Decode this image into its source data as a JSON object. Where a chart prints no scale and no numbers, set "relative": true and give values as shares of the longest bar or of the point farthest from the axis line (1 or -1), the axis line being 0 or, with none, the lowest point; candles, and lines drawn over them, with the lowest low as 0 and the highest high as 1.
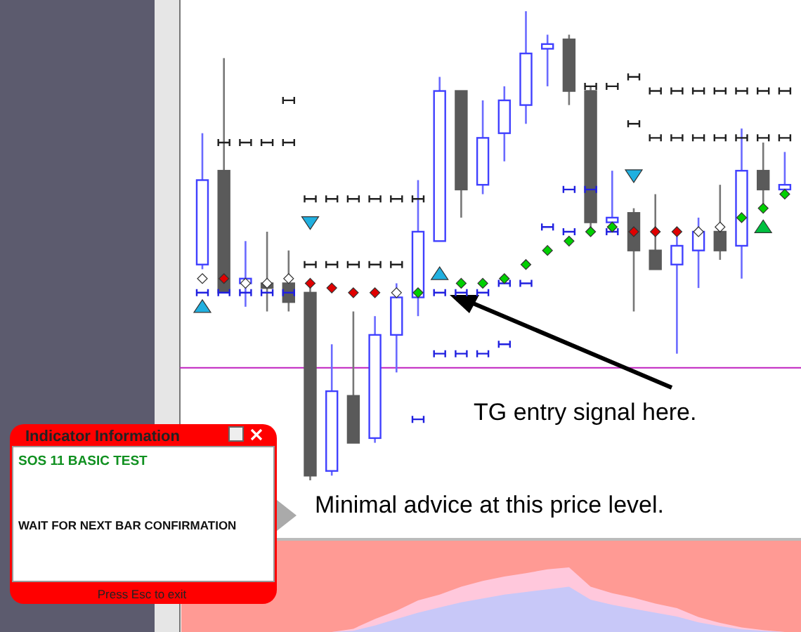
{
  "chart_data": [
    {
      "type": "candlestick",
      "relative": true,
      "categories": [
        null,
        null,
        null,
        null,
        null,
        null,
        null,
        null,
        null,
        null,
        null,
        null,
        null,
        null,
        null,
        null,
        null,
        null,
        null,
        null,
        null,
        null,
        null,
        null,
        null,
        null,
        null,
        null
      ],
      "ohlc": [
        [
          0.46,
          0.74,
          0.45,
          0.64
        ],
        [
          0.66,
          0.9,
          0.4,
          0.4
        ],
        [
          0.42,
          0.51,
          0.37,
          0.43
        ],
        [
          0.42,
          0.53,
          0.36,
          0.41
        ],
        [
          0.42,
          0.49,
          0.36,
          0.38
        ],
        [
          0.4,
          0.42,
          0,
          0.01
        ],
        [
          0.02,
          0.29,
          0.01,
          0.19
        ],
        [
          0.18,
          0.36,
          0.08,
          0.08
        ],
        [
          0.09,
          0.35,
          0.08,
          0.31
        ],
        [
          0.31,
          0.42,
          0.23,
          0.39
        ],
        [
          0.39,
          0.64,
          0.35,
          0.53
        ],
        [
          0.51,
          0.86,
          0.51,
          0.83
        ],
        [
          0.83,
          0.83,
          0.56,
          0.62
        ],
        [
          0.63,
          0.81,
          0.61,
          0.73
        ],
        [
          0.74,
          0.84,
          0.68,
          0.81
        ],
        [
          0.8,
          1,
          0.76,
          0.91
        ],
        [
          0.92,
          0.95,
          0.84,
          0.93
        ],
        [
          0.94,
          0.95,
          0.8,
          0.83
        ],
        [
          0.83,
          0.84,
          0.52,
          0.55
        ],
        [
          0.55,
          0.66,
          0.55,
          0.56
        ],
        [
          0.57,
          0.58,
          0.36,
          0.49
        ],
        [
          0.49,
          0.61,
          0.45,
          0.45
        ],
        [
          0.46,
          0.52,
          0.27,
          0.5
        ],
        [
          0.49,
          0.56,
          0.41,
          0.53
        ],
        [
          0.53,
          0.63,
          0.47,
          0.49
        ],
        [
          0.5,
          0.75,
          0.43,
          0.66
        ],
        [
          0.66,
          0.72,
          0.58,
          0.62
        ],
        [
          0.62,
          0.7,
          0.61,
          0.63
        ]
      ],
      "series": [
        {
          "type": "scatter",
          "marker": "cross",
          "color": "#202020",
          "values": [
            null,
            0.72,
            0.72,
            0.72,
            0.72,
            0.6,
            0.6,
            0.6,
            0.6,
            0.6,
            0.6,
            null,
            null,
            null,
            null,
            null,
            null,
            null,
            0.84,
            0.84,
            0.86,
            0.83,
            0.83,
            0.83,
            0.83,
            0.83,
            0.83,
            0.83
          ]
        },
        {
          "type": "scatter",
          "marker": "cross",
          "color": "#202020",
          "values": [
            null,
            null,
            null,
            null,
            0.81,
            0.46,
            0.46,
            0.46,
            0.46,
            0.46,
            null,
            null,
            null,
            null,
            null,
            null,
            null,
            null,
            null,
            null,
            0.76,
            0.73,
            0.73,
            0.73,
            0.73,
            0.73,
            0.73,
            0.73
          ]
        },
        {
          "type": "scatter",
          "marker": "cross",
          "color": "#2020e0",
          "values": [
            0.4,
            0.4,
            0.4,
            0.4,
            0.4,
            null,
            null,
            null,
            null,
            null,
            null,
            0.4,
            0.4,
            0.4,
            0.42,
            0.42,
            0.54,
            0.53,
            null,
            0.53,
            null,
            null,
            null,
            null,
            null,
            null,
            null,
            null
          ]
        },
        {
          "type": "scatter",
          "marker": "cross",
          "color": "#2020e0",
          "values": [
            null,
            null,
            null,
            null,
            null,
            null,
            null,
            null,
            null,
            null,
            0.13,
            0.27,
            0.27,
            0.27,
            0.29,
            null,
            null,
            0.62,
            0.62,
            null,
            null,
            null,
            null,
            null,
            null,
            null,
            null,
            null
          ]
        },
        {
          "type": "scatter",
          "marker": "diamond",
          "color": "#e00000",
          "values": [
            null,
            0.43,
            null,
            null,
            null,
            0.42,
            0.41,
            0.4,
            0.4,
            null,
            null,
            null,
            null,
            null,
            null,
            null,
            null,
            null,
            null,
            null,
            0.53,
            0.53,
            0.53,
            null,
            null,
            null,
            null,
            null
          ]
        },
        {
          "type": "scatter",
          "marker": "diamond",
          "color": "#00d000",
          "values": [
            null,
            null,
            null,
            null,
            null,
            null,
            null,
            null,
            null,
            null,
            0.4,
            null,
            0.42,
            0.42,
            0.43,
            0.46,
            0.49,
            0.51,
            0.53,
            0.54,
            null,
            null,
            null,
            null,
            null,
            0.56,
            0.58,
            0.61
          ]
        },
        {
          "type": "scatter",
          "marker": "diamond",
          "color": "#ffffff",
          "values": [
            0.43,
            null,
            0.42,
            0.42,
            0.43,
            null,
            null,
            null,
            null,
            0.4,
            null,
            null,
            null,
            null,
            null,
            null,
            null,
            null,
            null,
            null,
            null,
            null,
            null,
            0.53,
            0.54,
            null,
            null,
            null
          ]
        },
        {
          "type": "scatter",
          "marker": "triangle",
          "color": "#20b0e0",
          "values": [
            0.37,
            null,
            null,
            null,
            null,
            null,
            null,
            null,
            null,
            null,
            null,
            0.44,
            null,
            null,
            null,
            null,
            null,
            null,
            null,
            null,
            null,
            null,
            null,
            null,
            null,
            null,
            null,
            null
          ]
        },
        {
          "type": "scatter",
          "marker": "triangle-down",
          "color": "#20b0e0",
          "values": [
            null,
            null,
            null,
            null,
            null,
            0.55,
            null,
            null,
            null,
            null,
            null,
            null,
            null,
            null,
            null,
            null,
            null,
            null,
            null,
            null,
            0.65,
            null,
            null,
            null,
            null,
            null,
            null,
            null
          ]
        },
        {
          "type": "scatter",
          "marker": "triangle",
          "color": "#00c040",
          "values": [
            null,
            null,
            null,
            null,
            null,
            null,
            null,
            null,
            null,
            null,
            null,
            null,
            null,
            null,
            null,
            null,
            null,
            null,
            null,
            null,
            null,
            null,
            null,
            null,
            null,
            null,
            0.54,
            null
          ]
        }
      ],
      "ref_lines": [
        {
          "axis": "y",
          "value": 0.24,
          "color": "#c020c0"
        }
      ],
      "annotations": [
        "TG entry signal here.",
        "Minimal advice at this price level.",
        "Indicator Information",
        "SOS 11 BASIC TEST",
        "WAIT FOR NEXT BAR CONFIRMATION",
        "Press Esc to exit"
      ]
    },
    {
      "type": "area",
      "relative": true,
      "categories": [
        null,
        null,
        null,
        null,
        null,
        null,
        null,
        null,
        null,
        null,
        null,
        null,
        null,
        null,
        null,
        null,
        null,
        null,
        null,
        null,
        null,
        null,
        null,
        null,
        null,
        null,
        null,
        null
      ],
      "series": [
        {
          "color": "#ffc8dc",
          "values": [
            0,
            0,
            0,
            0,
            0,
            0,
            0,
            0.05,
            0.2,
            0.33,
            0.49,
            0.58,
            0.7,
            0.79,
            0.86,
            0.91,
            0.97,
            1,
            0.7,
            0.6,
            0.53,
            0.44,
            0.37,
            0.23,
            0.14,
            0.07,
            0.03,
            0
          ]
        },
        {
          "color": "#c8c8f8",
          "values": [
            0,
            0,
            0,
            0,
            0,
            0,
            0,
            0.02,
            0.1,
            0.2,
            0.3,
            0.38,
            0.46,
            0.52,
            0.58,
            0.62,
            0.66,
            0.7,
            0.5,
            0.42,
            0.36,
            0.3,
            0.24,
            0.15,
            0.09,
            0.04,
            0.02,
            0
          ]
        }
      ]
    }
  ]
}
